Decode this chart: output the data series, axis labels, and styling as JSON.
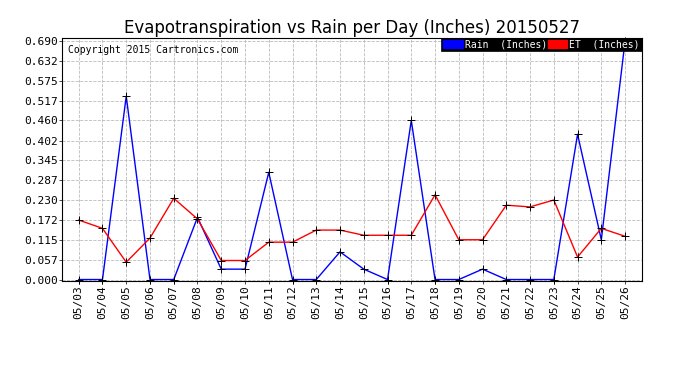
{
  "title": "Evapotranspiration vs Rain per Day (Inches) 20150527",
  "copyright": "Copyright 2015 Cartronics.com",
  "dates": [
    "05/03",
    "05/04",
    "05/05",
    "05/06",
    "05/07",
    "05/08",
    "05/09",
    "05/10",
    "05/11",
    "05/12",
    "05/13",
    "05/14",
    "05/15",
    "05/16",
    "05/17",
    "05/18",
    "05/19",
    "05/20",
    "05/21",
    "05/22",
    "05/23",
    "05/24",
    "05/25",
    "05/26"
  ],
  "rain": [
    0.0,
    0.0,
    0.53,
    0.0,
    0.0,
    0.18,
    0.03,
    0.03,
    0.31,
    0.0,
    0.0,
    0.08,
    0.03,
    0.0,
    0.46,
    0.0,
    0.0,
    0.03,
    0.0,
    0.0,
    0.0,
    0.42,
    0.115,
    0.69
  ],
  "et": [
    0.172,
    0.148,
    0.05,
    0.12,
    0.235,
    0.175,
    0.055,
    0.055,
    0.108,
    0.108,
    0.143,
    0.143,
    0.128,
    0.128,
    0.128,
    0.245,
    0.115,
    0.115,
    0.215,
    0.21,
    0.23,
    0.065,
    0.148,
    0.125
  ],
  "rain_color": "#0000ff",
  "et_color": "#ff0000",
  "background_color": "#ffffff",
  "grid_color": "#bbbbbb",
  "ylim": [
    -0.005,
    0.7
  ],
  "yticks": [
    0.0,
    0.057,
    0.115,
    0.172,
    0.23,
    0.287,
    0.345,
    0.402,
    0.46,
    0.517,
    0.575,
    0.632,
    0.69
  ],
  "title_fontsize": 12,
  "tick_fontsize": 8,
  "copyright_fontsize": 7,
  "marker": "+",
  "marker_size": 6,
  "line_width": 1.0
}
